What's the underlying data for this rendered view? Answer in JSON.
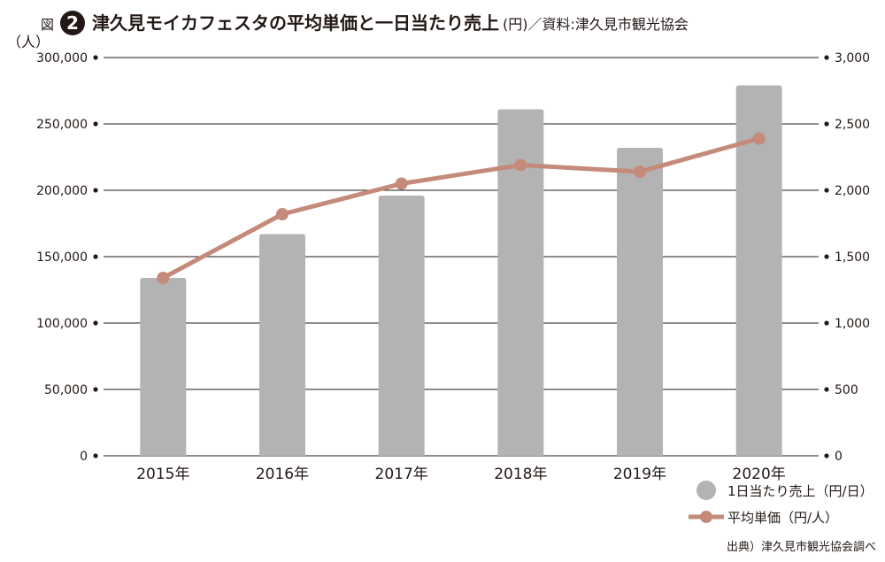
{
  "chart_data": {
    "type": "bar+line",
    "figure_label": "図",
    "figure_number": "2",
    "title": "津久見モイカフェスタの平均単価と一日当たり売上",
    "title_suffix": "(円)／資料:津久見市観光協会",
    "left_axis_unit": "（人）",
    "categories": [
      "2015年",
      "2016年",
      "2017年",
      "2018年",
      "2019年",
      "2020年"
    ],
    "y_left": {
      "min": 0,
      "max": 300000,
      "step": 50000,
      "tick_labels": [
        "0",
        "50,000",
        "100,000",
        "150,000",
        "200,000",
        "250,000",
        "300,000"
      ]
    },
    "y_right": {
      "min": 0,
      "max": 3000,
      "step": 500,
      "tick_labels": [
        "0",
        "500",
        "1,000",
        "1,500",
        "2,000",
        "2,500",
        "3,000"
      ]
    },
    "series": [
      {
        "name": "1日当たり売上（円/日）",
        "type": "bar",
        "axis": "left",
        "color": "#b3b3b3",
        "values": [
          134000,
          167000,
          196000,
          261000,
          232000,
          279000
        ]
      },
      {
        "name": "平均単価（円/人）",
        "type": "line",
        "axis": "right",
        "color": "#c48a7a",
        "values": [
          1340,
          1820,
          2050,
          2190,
          2140,
          2390
        ]
      }
    ],
    "grid": true,
    "legend_position": "bottom-right",
    "source_note": "出典）津久見市観光協会調べ"
  }
}
